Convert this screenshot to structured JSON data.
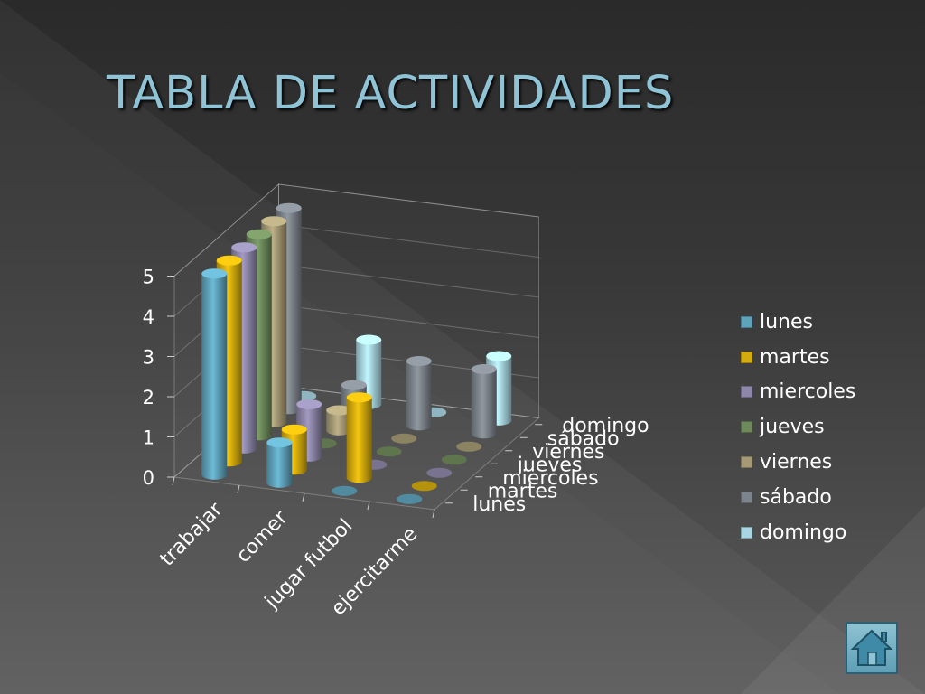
{
  "slide": {
    "title": "TABLA DE ACTIVIDADES",
    "home_icon": "home-icon",
    "colors": {
      "title": "#8fc3d6",
      "background": "#333333"
    }
  },
  "chart_data": {
    "type": "bar",
    "variant": "3d-cylinder",
    "title": "",
    "categories": [
      "trabajar",
      "comer",
      "jugar futbol",
      "ejercitarme"
    ],
    "yticks": [
      "0",
      "1",
      "2",
      "3",
      "4",
      "5"
    ],
    "ylim": [
      0,
      5
    ],
    "grid": true,
    "legend_position": "right",
    "series": [
      {
        "name": "lunes",
        "color": "#5fa3bb",
        "values": [
          5,
          1,
          0,
          0
        ]
      },
      {
        "name": "martes",
        "color": "#d4ac0d",
        "values": [
          5,
          1,
          2,
          0
        ]
      },
      {
        "name": "miercoles",
        "color": "#8e87a9",
        "values": [
          5,
          1.3,
          0,
          0
        ]
      },
      {
        "name": "jueves",
        "color": "#6e8a5c",
        "values": [
          5,
          0,
          0,
          0
        ]
      },
      {
        "name": "viernes",
        "color": "#a59a75",
        "values": [
          5,
          0.5,
          0,
          0
        ]
      },
      {
        "name": "sábado",
        "color": "#7d848c",
        "values": [
          5,
          0.8,
          1.6,
          1.6
        ]
      },
      {
        "name": "domingo",
        "color": "#a8d6e2",
        "values": [
          0,
          1.6,
          0,
          1.6
        ]
      }
    ],
    "depth_axis_labels": [
      "lunes",
      "martes",
      "miercoles",
      "jueves",
      "viernes",
      "sábado",
      "domingo"
    ]
  }
}
